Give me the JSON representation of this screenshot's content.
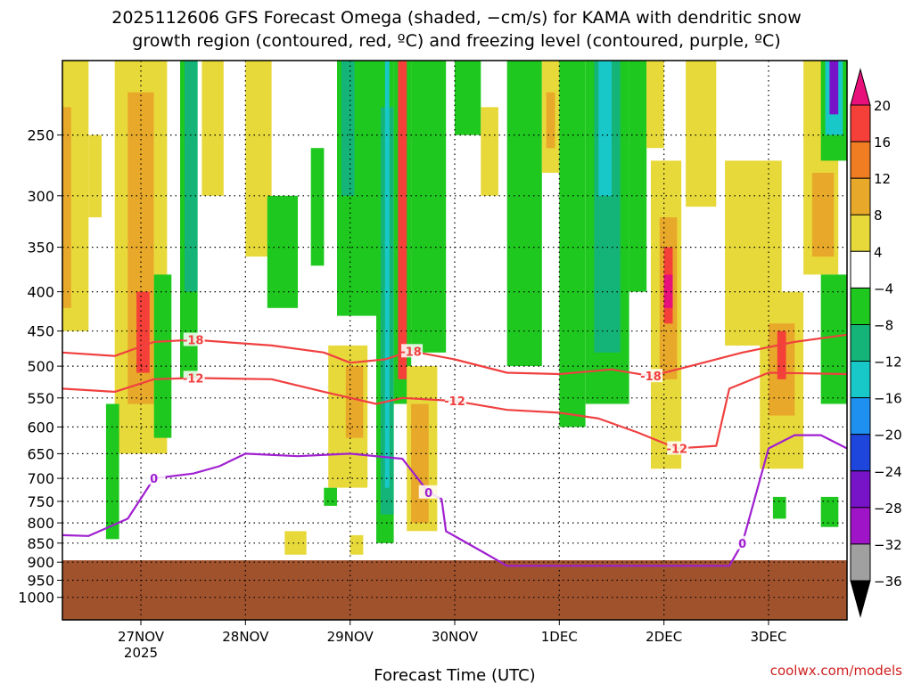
{
  "chart_data": {
    "type": "heatmap",
    "title_lines": [
      "2025112606 GFS Forecast Omega (shaded, −cm/s) for KAMA with dendritic snow",
      "growth region (contoured, red, ºC) and freezing level (contoured, purple, ºC)"
    ],
    "xlabel": "Forecast Time (UTC)",
    "credit": "coolwx.com/models",
    "x_range": [
      "2025-11-26T06:00Z",
      "2025-12-03T18:00Z"
    ],
    "x_ticks": [
      {
        "label": "27NOV",
        "sub": "2025",
        "time": "2025-11-27T00:00Z"
      },
      {
        "label": "28NOV",
        "sub": "",
        "time": "2025-11-28T00:00Z"
      },
      {
        "label": "29NOV",
        "sub": "",
        "time": "2025-11-29T00:00Z"
      },
      {
        "label": "30NOV",
        "sub": "",
        "time": "2025-11-30T00:00Z"
      },
      {
        "label": "1DEC",
        "sub": "",
        "time": "2025-12-01T00:00Z"
      },
      {
        "label": "2DEC",
        "sub": "",
        "time": "2025-12-02T00:00Z"
      },
      {
        "label": "3DEC",
        "sub": "",
        "time": "2025-12-03T00:00Z"
      }
    ],
    "y_unit": "hPa",
    "y_scale": "log-pressure",
    "y_range_hpa": [
      1070,
      200
    ],
    "y_ticks": [
      250,
      300,
      350,
      400,
      450,
      500,
      550,
      600,
      650,
      700,
      750,
      800,
      850,
      900,
      950,
      1000
    ],
    "grid": "dotted, at each x tick and pressure tick",
    "colorbar": {
      "orientation": "vertical",
      "position": "right",
      "labels": [
        "20",
        "16",
        "12",
        "8",
        "4",
        "−4",
        "−8",
        "−12",
        "−16",
        "−20",
        "−24",
        "−28",
        "−32",
        "−36"
      ],
      "bins": [
        {
          "range": ">20",
          "color": "#e8107a"
        },
        {
          "range": "16 to 20",
          "color": "#f5403a"
        },
        {
          "range": "12 to 16",
          "color": "#f07d21"
        },
        {
          "range": "8 to 12",
          "color": "#e8a82a"
        },
        {
          "range": "4 to 8",
          "color": "#e8d93a"
        },
        {
          "range": "−4 to 4",
          "color": "#ffffff"
        },
        {
          "range": "−8 to −4",
          "color": "#1ec81e"
        },
        {
          "range": "−12 to −8",
          "color": "#14b478"
        },
        {
          "range": "−16 to −12",
          "color": "#18c8c8"
        },
        {
          "range": "−20 to −16",
          "color": "#1e90f0"
        },
        {
          "range": "−24 to −20",
          "color": "#1e46dc"
        },
        {
          "range": "−28 to −24",
          "color": "#7814c8"
        },
        {
          "range": "−32 to −28",
          "color": "#a014c8"
        },
        {
          "range": "−36 to −32",
          "color": "#a0a0a0"
        },
        {
          "range": "<−36",
          "color": "#000000"
        }
      ]
    },
    "terrain_color": "#a0522d",
    "surface_pressure_hpa": 895,
    "omega_cells": [
      {
        "t0": "2025-11-26T06:00Z",
        "t1": "2025-11-26T12:00Z",
        "p_top": 200,
        "p_bot": 450,
        "bin": "4 to 8"
      },
      {
        "t0": "2025-11-26T06:00Z",
        "t1": "2025-11-26T08:00Z",
        "p_top": 230,
        "p_bot": 420,
        "bin": "8 to 12"
      },
      {
        "t0": "2025-11-26T12:00Z",
        "t1": "2025-11-26T15:00Z",
        "p_top": 250,
        "p_bot": 320,
        "bin": "4 to 8"
      },
      {
        "t0": "2025-11-26T18:00Z",
        "t1": "2025-11-27T06:00Z",
        "p_top": 200,
        "p_bot": 650,
        "bin": "4 to 8"
      },
      {
        "t0": "2025-11-26T21:00Z",
        "t1": "2025-11-27T03:00Z",
        "p_top": 220,
        "p_bot": 560,
        "bin": "8 to 12"
      },
      {
        "t0": "2025-11-26T23:00Z",
        "t1": "2025-11-27T02:00Z",
        "p_top": 400,
        "p_bot": 510,
        "bin": "16 to 20"
      },
      {
        "t0": "2025-11-26T16:00Z",
        "t1": "2025-11-26T19:00Z",
        "p_top": 560,
        "p_bot": 840,
        "bin": "−8 to −4"
      },
      {
        "t0": "2025-11-27T03:00Z",
        "t1": "2025-11-27T07:00Z",
        "p_top": 380,
        "p_bot": 620,
        "bin": "−8 to −4"
      },
      {
        "t0": "2025-11-27T09:00Z",
        "t1": "2025-11-27T13:00Z",
        "p_top": 200,
        "p_bot": 520,
        "bin": "−8 to −4"
      },
      {
        "t0": "2025-11-27T10:00Z",
        "t1": "2025-11-27T13:00Z",
        "p_top": 200,
        "p_bot": 400,
        "bin": "−12 to −8"
      },
      {
        "t0": "2025-11-27T14:00Z",
        "t1": "2025-11-27T19:00Z",
        "p_top": 200,
        "p_bot": 300,
        "bin": "4 to 8"
      },
      {
        "t0": "2025-11-28T00:00Z",
        "t1": "2025-11-28T06:00Z",
        "p_top": 200,
        "p_bot": 360,
        "bin": "4 to 8"
      },
      {
        "t0": "2025-11-28T05:00Z",
        "t1": "2025-11-28T12:00Z",
        "p_top": 300,
        "p_bot": 420,
        "bin": "−8 to −4"
      },
      {
        "t0": "2025-11-28T15:00Z",
        "t1": "2025-11-28T18:00Z",
        "p_top": 260,
        "p_bot": 370,
        "bin": "−8 to −4"
      },
      {
        "t0": "2025-11-28T21:00Z",
        "t1": "2025-11-29T06:00Z",
        "p_top": 200,
        "p_bot": 430,
        "bin": "−8 to −4"
      },
      {
        "t0": "2025-11-28T22:00Z",
        "t1": "2025-11-29T01:00Z",
        "p_top": 200,
        "p_bot": 300,
        "bin": "−12 to −8"
      },
      {
        "t0": "2025-11-28T19:00Z",
        "t1": "2025-11-29T04:00Z",
        "p_top": 470,
        "p_bot": 720,
        "bin": "4 to 8"
      },
      {
        "t0": "2025-11-28T23:00Z",
        "t1": "2025-11-29T03:00Z",
        "p_top": 500,
        "p_bot": 620,
        "bin": "8 to 12"
      },
      {
        "t0": "2025-11-29T06:00Z",
        "t1": "2025-11-29T10:00Z",
        "p_top": 200,
        "p_bot": 850,
        "bin": "−8 to −4"
      },
      {
        "t0": "2025-11-29T07:00Z",
        "t1": "2025-11-29T10:00Z",
        "p_top": 230,
        "p_bot": 780,
        "bin": "−12 to −8"
      },
      {
        "t0": "2025-11-29T08:00Z",
        "t1": "2025-11-29T09:00Z",
        "p_top": 200,
        "p_bot": 720,
        "bin": "−16 to −12"
      },
      {
        "t0": "2025-11-29T10:00Z",
        "t1": "2025-11-29T14:00Z",
        "p_top": 200,
        "p_bot": 560,
        "bin": "−8 to −4"
      },
      {
        "t0": "2025-11-29T11:00Z",
        "t1": "2025-11-29T13:00Z",
        "p_top": 200,
        "p_bot": 520,
        "bin": "16 to 20"
      },
      {
        "t0": "2025-11-29T13:00Z",
        "t1": "2025-11-29T20:00Z",
        "p_top": 500,
        "p_bot": 820,
        "bin": "4 to 8"
      },
      {
        "t0": "2025-11-29T14:00Z",
        "t1": "2025-11-29T18:00Z",
        "p_top": 560,
        "p_bot": 800,
        "bin": "8 to 12"
      },
      {
        "t0": "2025-11-29T14:00Z",
        "t1": "2025-11-29T22:00Z",
        "p_top": 200,
        "p_bot": 480,
        "bin": "−8 to −4"
      },
      {
        "t0": "2025-11-30T00:00Z",
        "t1": "2025-11-30T06:00Z",
        "p_top": 200,
        "p_bot": 250,
        "bin": "−8 to −4"
      },
      {
        "t0": "2025-11-30T06:00Z",
        "t1": "2025-11-30T10:00Z",
        "p_top": 230,
        "p_bot": 300,
        "bin": "4 to 8"
      },
      {
        "t0": "2025-11-30T12:00Z",
        "t1": "2025-11-30T20:00Z",
        "p_top": 200,
        "p_bot": 500,
        "bin": "−8 to −4"
      },
      {
        "t0": "2025-11-30T20:00Z",
        "t1": "2025-12-01T00:00Z",
        "p_top": 200,
        "p_bot": 280,
        "bin": "4 to 8"
      },
      {
        "t0": "2025-11-30T21:00Z",
        "t1": "2025-11-30T23:00Z",
        "p_top": 220,
        "p_bot": 260,
        "bin": "8 to 12"
      },
      {
        "t0": "2025-12-01T00:00Z",
        "t1": "2025-12-01T06:00Z",
        "p_top": 200,
        "p_bot": 600,
        "bin": "−8 to −4"
      },
      {
        "t0": "2025-12-01T06:00Z",
        "t1": "2025-12-01T16:00Z",
        "p_top": 200,
        "p_bot": 560,
        "bin": "−8 to −4"
      },
      {
        "t0": "2025-12-01T08:00Z",
        "t1": "2025-12-01T14:00Z",
        "p_top": 200,
        "p_bot": 480,
        "bin": "−12 to −8"
      },
      {
        "t0": "2025-12-01T09:00Z",
        "t1": "2025-12-01T12:00Z",
        "p_top": 200,
        "p_bot": 300,
        "bin": "−16 to −12"
      },
      {
        "t0": "2025-12-01T16:00Z",
        "t1": "2025-12-01T20:00Z",
        "p_top": 200,
        "p_bot": 400,
        "bin": "−8 to −4"
      },
      {
        "t0": "2025-12-01T20:00Z",
        "t1": "2025-12-02T00:00Z",
        "p_top": 200,
        "p_bot": 260,
        "bin": "4 to 8"
      },
      {
        "t0": "2025-12-01T21:00Z",
        "t1": "2025-12-02T04:00Z",
        "p_top": 270,
        "p_bot": 680,
        "bin": "4 to 8"
      },
      {
        "t0": "2025-12-01T23:00Z",
        "t1": "2025-12-02T03:00Z",
        "p_top": 320,
        "p_bot": 520,
        "bin": "8 to 12"
      },
      {
        "t0": "2025-12-02T00:00Z",
        "t1": "2025-12-02T02:00Z",
        "p_top": 350,
        "p_bot": 440,
        "bin": "16 to 20"
      },
      {
        "t0": "2025-12-02T00:00Z",
        "t1": "2025-12-02T02:00Z",
        "p_top": 380,
        "p_bot": 420,
        "bin": ">20"
      },
      {
        "t0": "2025-12-02T05:00Z",
        "t1": "2025-12-02T12:00Z",
        "p_top": 200,
        "p_bot": 310,
        "bin": "4 to 8"
      },
      {
        "t0": "2025-12-02T14:00Z",
        "t1": "2025-12-03T03:00Z",
        "p_top": 270,
        "p_bot": 470,
        "bin": "4 to 8"
      },
      {
        "t0": "2025-12-02T22:00Z",
        "t1": "2025-12-03T08:00Z",
        "p_top": 400,
        "p_bot": 680,
        "bin": "4 to 8"
      },
      {
        "t0": "2025-12-03T00:00Z",
        "t1": "2025-12-03T06:00Z",
        "p_top": 440,
        "p_bot": 580,
        "bin": "8 to 12"
      },
      {
        "t0": "2025-12-03T02:00Z",
        "t1": "2025-12-03T04:00Z",
        "p_top": 450,
        "p_bot": 520,
        "bin": "16 to 20"
      },
      {
        "t0": "2025-12-03T08:00Z",
        "t1": "2025-12-03T16:00Z",
        "p_top": 200,
        "p_bot": 380,
        "bin": "4 to 8"
      },
      {
        "t0": "2025-12-03T10:00Z",
        "t1": "2025-12-03T15:00Z",
        "p_top": 280,
        "p_bot": 360,
        "bin": "8 to 12"
      },
      {
        "t0": "2025-12-03T12:00Z",
        "t1": "2025-12-03T18:00Z",
        "p_top": 200,
        "p_bot": 270,
        "bin": "−8 to −4"
      },
      {
        "t0": "2025-12-03T13:00Z",
        "t1": "2025-12-03T17:00Z",
        "p_top": 200,
        "p_bot": 250,
        "bin": "−16 to −12"
      },
      {
        "t0": "2025-12-03T14:00Z",
        "t1": "2025-12-03T16:00Z",
        "p_top": 200,
        "p_bot": 235,
        "bin": "−28 to −24"
      },
      {
        "t0": "2025-12-03T12:00Z",
        "t1": "2025-12-03T18:00Z",
        "p_top": 380,
        "p_bot": 560,
        "bin": "−8 to −4"
      },
      {
        "t0": "2025-12-03T12:00Z",
        "t1": "2025-12-03T16:00Z",
        "p_top": 740,
        "p_bot": 810,
        "bin": "−8 to −4"
      },
      {
        "t0": "2025-12-03T01:00Z",
        "t1": "2025-12-03T04:00Z",
        "p_top": 740,
        "p_bot": 790,
        "bin": "−8 to −4"
      },
      {
        "t0": "2025-11-28T09:00Z",
        "t1": "2025-11-28T14:00Z",
        "p_top": 820,
        "p_bot": 880,
        "bin": "4 to 8"
      },
      {
        "t0": "2025-11-29T00:00Z",
        "t1": "2025-11-29T03:00Z",
        "p_top": 830,
        "p_bot": 880,
        "bin": "4 to 8"
      },
      {
        "t0": "2025-11-28T18:00Z",
        "t1": "2025-11-28T21:00Z",
        "p_top": 720,
        "p_bot": 760,
        "bin": "−8 to −4"
      }
    ],
    "contours": [
      {
        "label": "-18",
        "color": "#f04040",
        "points": [
          [
            "2025-11-26T06:00Z",
            480
          ],
          [
            "2025-11-26T18:00Z",
            485
          ],
          [
            "2025-11-27T03:00Z",
            465
          ],
          [
            "2025-11-27T12:00Z",
            462
          ],
          [
            "2025-11-28T06:00Z",
            470
          ],
          [
            "2025-11-28T18:00Z",
            480
          ],
          [
            "2025-11-29T00:00Z",
            495
          ],
          [
            "2025-11-29T08:00Z",
            490
          ],
          [
            "2025-11-29T14:00Z",
            478
          ],
          [
            "2025-11-30T00:00Z",
            490
          ],
          [
            "2025-11-30T12:00Z",
            510
          ],
          [
            "2025-12-01T00:00Z",
            512
          ],
          [
            "2025-12-01T12:00Z",
            505
          ],
          [
            "2025-12-01T21:00Z",
            515
          ],
          [
            "2025-12-02T06:00Z",
            500
          ],
          [
            "2025-12-02T18:00Z",
            480
          ],
          [
            "2025-12-03T06:00Z",
            465
          ],
          [
            "2025-12-03T18:00Z",
            455
          ]
        ]
      },
      {
        "label": "-12",
        "color": "#f04040",
        "points": [
          [
            "2025-11-26T06:00Z",
            535
          ],
          [
            "2025-11-26T18:00Z",
            540
          ],
          [
            "2025-11-27T03:00Z",
            520
          ],
          [
            "2025-11-27T12:00Z",
            518
          ],
          [
            "2025-11-28T06:00Z",
            520
          ],
          [
            "2025-11-28T18:00Z",
            540
          ],
          [
            "2025-11-29T06:00Z",
            560
          ],
          [
            "2025-11-29T12:00Z",
            550
          ],
          [
            "2025-11-30T00:00Z",
            555
          ],
          [
            "2025-11-30T12:00Z",
            570
          ],
          [
            "2025-12-01T00:00Z",
            575
          ],
          [
            "2025-12-01T09:00Z",
            585
          ],
          [
            "2025-12-01T18:00Z",
            610
          ],
          [
            "2025-12-02T03:00Z",
            640
          ],
          [
            "2025-12-02T12:00Z",
            635
          ],
          [
            "2025-12-02T15:00Z",
            535
          ],
          [
            "2025-12-03T00:00Z",
            510
          ],
          [
            "2025-12-03T18:00Z",
            512
          ]
        ]
      },
      {
        "label": "0",
        "color": "#a020d0",
        "points": [
          [
            "2025-11-26T06:00Z",
            830
          ],
          [
            "2025-11-26T12:00Z",
            832
          ],
          [
            "2025-11-26T21:00Z",
            790
          ],
          [
            "2025-11-27T03:00Z",
            700
          ],
          [
            "2025-11-27T12:00Z",
            690
          ],
          [
            "2025-11-27T18:00Z",
            675
          ],
          [
            "2025-11-28T00:00Z",
            650
          ],
          [
            "2025-11-28T12:00Z",
            655
          ],
          [
            "2025-11-29T00:00Z",
            650
          ],
          [
            "2025-11-29T12:00Z",
            660
          ],
          [
            "2025-11-29T18:00Z",
            730
          ],
          [
            "2025-11-29T21:00Z",
            745
          ],
          [
            "2025-11-29T22:00Z",
            820
          ],
          [
            "2025-11-30T06:00Z",
            870
          ],
          [
            "2025-11-30T12:00Z",
            910
          ],
          [
            "2025-12-02T15:00Z",
            910
          ],
          [
            "2025-12-02T18:00Z",
            850
          ],
          [
            "2025-12-03T00:00Z",
            640
          ],
          [
            "2025-12-03T06:00Z",
            615
          ],
          [
            "2025-12-03T12:00Z",
            615
          ],
          [
            "2025-12-03T18:00Z",
            640
          ]
        ]
      }
    ]
  }
}
